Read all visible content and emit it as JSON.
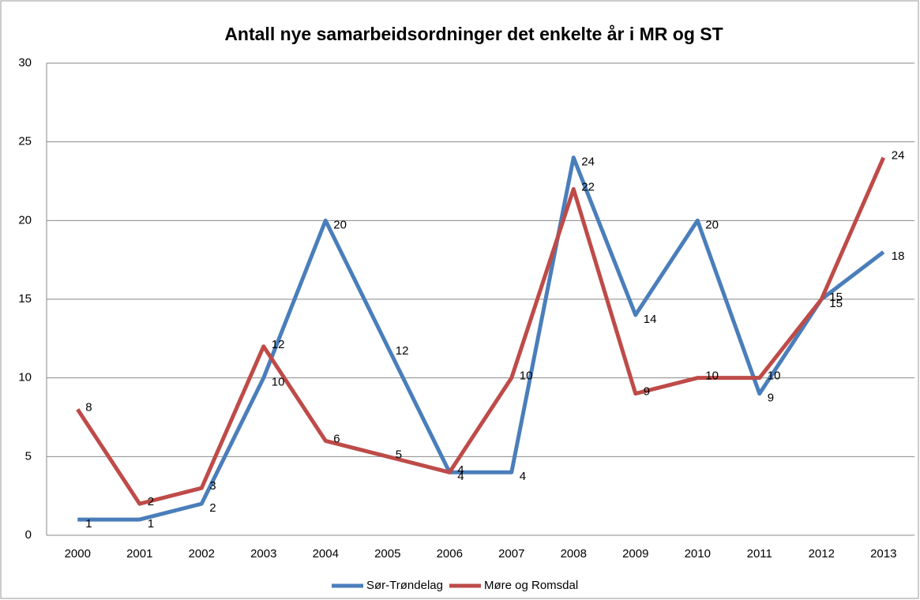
{
  "chart_data": {
    "type": "line",
    "title": "Antall nye samarbeidsordninger det enkelte år i MR og ST",
    "categories": [
      "2000",
      "2001",
      "2002",
      "2003",
      "2004",
      "2005",
      "2006",
      "2007",
      "2008",
      "2009",
      "2010",
      "2011",
      "2012",
      "2013"
    ],
    "series": [
      {
        "name": "Sør-Trøndelag",
        "color": "#4a7ebb",
        "values": [
          1,
          1,
          2,
          10,
          20,
          12,
          4,
          4,
          24,
          14,
          20,
          9,
          15,
          18
        ]
      },
      {
        "name": "Møre og Romsdal",
        "color": "#be4b48",
        "values": [
          8,
          2,
          3,
          12,
          6,
          5,
          4,
          10,
          22,
          9,
          10,
          10,
          15,
          24
        ]
      }
    ],
    "ylim": [
      0,
      30
    ],
    "yticks": [
      0,
      5,
      10,
      15,
      20,
      25,
      30
    ],
    "grid": true,
    "legend": "bottom"
  }
}
